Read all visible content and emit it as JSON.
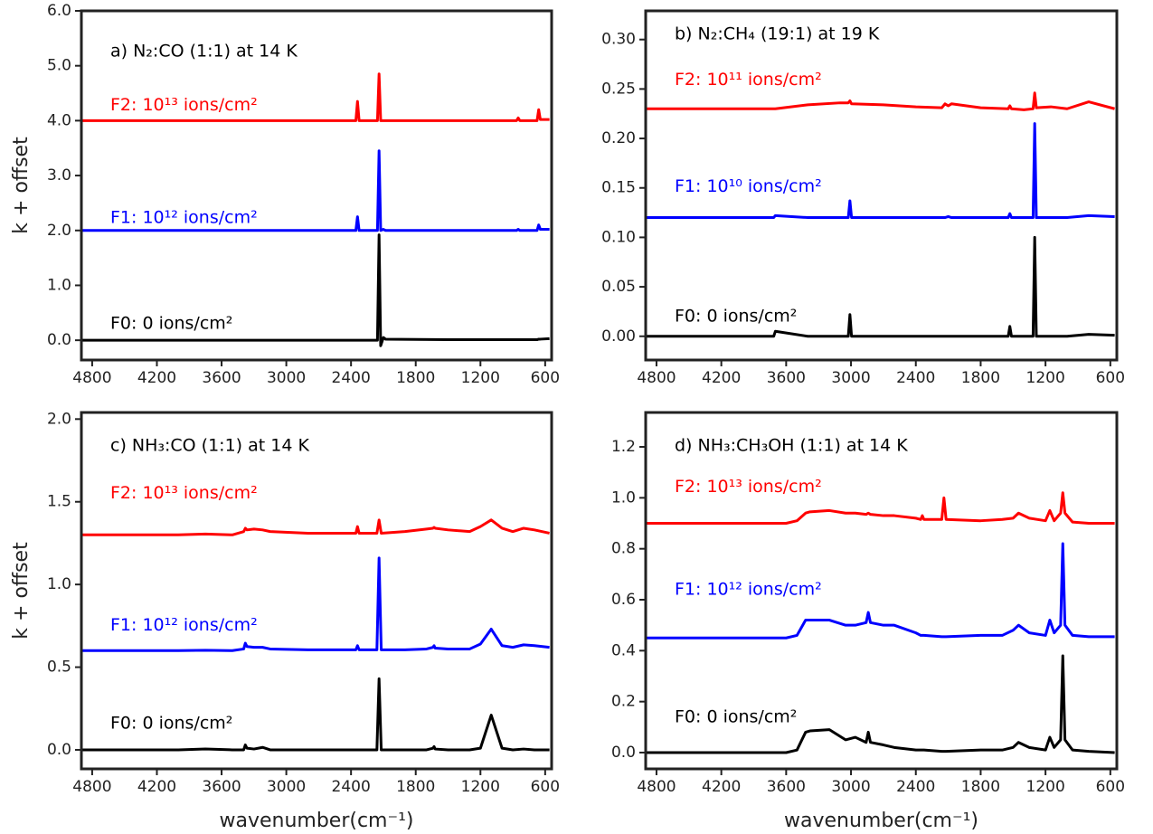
{
  "chart_data": [
    {
      "type": "line",
      "title": "a) N₂:CO (1:1) at 14 K",
      "y_label": "k + offset",
      "x": [
        4900,
        4000,
        3000,
        2400,
        2355,
        2340,
        2325,
        2200,
        2155,
        2140,
        2125,
        2100,
        2080,
        1500,
        900,
        865,
        850,
        835,
        700,
        675,
        660,
        645,
        560
      ],
      "series": [
        {
          "name": "F2: 10¹³ ions/cm²",
          "color": "#ff0000",
          "values": [
            4.0,
            4.0,
            4.0,
            4.0,
            4.0,
            4.35,
            4.0,
            4.0,
            4.0,
            4.85,
            4.0,
            4.0,
            4.0,
            4.0,
            4.0,
            4.0,
            4.05,
            4.0,
            4.0,
            4.0,
            4.2,
            4.02,
            4.02
          ]
        },
        {
          "name": "F1: 10¹² ions/cm²",
          "color": "#0000ff",
          "values": [
            2.0,
            2.0,
            2.0,
            2.0,
            2.0,
            2.25,
            2.0,
            2.0,
            2.0,
            3.45,
            2.0,
            2.02,
            2.0,
            2.0,
            2.0,
            2.0,
            2.02,
            2.0,
            2.0,
            2.0,
            2.1,
            2.02,
            2.02
          ]
        },
        {
          "name": "F0: 0 ions/cm²",
          "color": "#000000",
          "values": [
            0,
            0,
            0,
            0,
            0,
            0,
            0,
            0,
            0,
            1.92,
            -0.1,
            0.05,
            0.02,
            0.01,
            0.01,
            0.01,
            0.01,
            0.01,
            0.01,
            0.01,
            0.02,
            0.02,
            0.03
          ]
        }
      ],
      "xlim": [
        4900,
        540
      ],
      "xticks": [
        4800,
        4200,
        3600,
        3000,
        2400,
        1800,
        1200,
        600
      ],
      "ylim": [
        -0.36,
        6.0
      ],
      "yticks": [
        {
          "value": 0,
          "label": "0.0"
        },
        {
          "value": 1,
          "label": "1.0"
        },
        {
          "value": 2,
          "label": "2.0"
        },
        {
          "value": 3,
          "label": "3.0"
        },
        {
          "value": 4,
          "label": "4.0"
        },
        {
          "value": 5,
          "label": "5.0"
        },
        {
          "value": 6,
          "label": "6.0"
        }
      ],
      "grid": false
    },
    {
      "type": "line",
      "title": "b) N₂:CH₄ (19:1) at 19 K",
      "x": [
        4900,
        4000,
        3730,
        3715,
        3700,
        3400,
        3100,
        3025,
        3010,
        2995,
        2700,
        2400,
        2160,
        2130,
        2100,
        2070,
        1800,
        1545,
        1530,
        1515,
        1400,
        1315,
        1300,
        1285,
        1150,
        1000,
        800,
        560
      ],
      "series": [
        {
          "name": "F2: 10¹¹ ions/cm²",
          "color": "#ff0000",
          "values": [
            0.23,
            0.23,
            0.23,
            0.23,
            0.23,
            0.234,
            0.236,
            0.236,
            0.238,
            0.235,
            0.234,
            0.232,
            0.231,
            0.235,
            0.233,
            0.235,
            0.231,
            0.23,
            0.233,
            0.23,
            0.229,
            0.23,
            0.246,
            0.231,
            0.232,
            0.23,
            0.237,
            0.23
          ]
        },
        {
          "name": "F1: 10¹⁰ ions/cm²",
          "color": "#0000ff",
          "values": [
            0.12,
            0.12,
            0.12,
            0.12,
            0.122,
            0.12,
            0.12,
            0.12,
            0.137,
            0.12,
            0.12,
            0.12,
            0.12,
            0.12,
            0.121,
            0.12,
            0.12,
            0.12,
            0.124,
            0.12,
            0.12,
            0.12,
            0.215,
            0.12,
            0.12,
            0.12,
            0.122,
            0.121
          ]
        },
        {
          "name": "F0: 0 ions/cm²",
          "color": "#000000",
          "values": [
            0,
            0,
            0,
            0,
            0.005,
            0,
            0,
            0,
            0.022,
            0,
            0,
            0,
            0,
            0,
            0,
            0,
            0,
            0,
            0.01,
            0,
            0,
            0,
            0.1,
            0,
            0,
            0,
            0.002,
            0.001
          ]
        }
      ],
      "xlim": [
        4900,
        540
      ],
      "xticks": [
        4800,
        4200,
        3600,
        3000,
        2400,
        1800,
        1200,
        600
      ],
      "ylim": [
        -0.024,
        0.329
      ],
      "yticks": [
        {
          "value": 0,
          "label": "0.00"
        },
        0.05,
        {
          "value": 0.1,
          "label": "0.10"
        },
        0.15,
        {
          "value": 0.2,
          "label": "0.20"
        },
        0.25,
        {
          "value": 0.3,
          "label": "0.30"
        }
      ],
      "grid": false
    },
    {
      "type": "line",
      "title": "c) NH₃:CO (1:1) at 14 K",
      "x_label": "wavenumber(cm⁻¹)",
      "y_label": "k + offset",
      "x": [
        4900,
        4000,
        3750,
        3500,
        3395,
        3380,
        3365,
        3300,
        3220,
        3150,
        2800,
        2400,
        2355,
        2340,
        2325,
        2160,
        2140,
        2120,
        1900,
        1700,
        1640,
        1630,
        1620,
        1500,
        1300,
        1200,
        1100,
        1000,
        900,
        800,
        700,
        560
      ],
      "series": [
        {
          "name": "F2: 10¹³ ions/cm²",
          "color": "#ff0000",
          "values": [
            1.3,
            1.3,
            1.305,
            1.3,
            1.32,
            1.34,
            1.33,
            1.335,
            1.33,
            1.32,
            1.31,
            1.31,
            1.31,
            1.35,
            1.31,
            1.31,
            1.39,
            1.31,
            1.32,
            1.335,
            1.34,
            1.345,
            1.34,
            1.33,
            1.32,
            1.35,
            1.39,
            1.34,
            1.32,
            1.34,
            1.33,
            1.31
          ]
        },
        {
          "name": "F1: 10¹² ions/cm²",
          "color": "#0000ff",
          "values": [
            0.6,
            0.6,
            0.602,
            0.6,
            0.61,
            0.645,
            0.625,
            0.62,
            0.62,
            0.61,
            0.605,
            0.605,
            0.605,
            0.63,
            0.605,
            0.605,
            1.16,
            0.605,
            0.605,
            0.61,
            0.62,
            0.63,
            0.615,
            0.61,
            0.61,
            0.64,
            0.73,
            0.63,
            0.62,
            0.635,
            0.63,
            0.62
          ]
        },
        {
          "name": "F0: 0 ions/cm²",
          "color": "#000000",
          "values": [
            0,
            0,
            0.005,
            0,
            0,
            0.03,
            0.01,
            0.005,
            0.015,
            0,
            0,
            0,
            0,
            0,
            0,
            0,
            0.43,
            0,
            0,
            0,
            0.01,
            0.02,
            0.005,
            0,
            0,
            0.01,
            0.21,
            0.01,
            0,
            0.005,
            0,
            0
          ]
        }
      ],
      "xlim": [
        4900,
        540
      ],
      "xticks": [
        4800,
        4200,
        3600,
        3000,
        2400,
        1800,
        1200,
        600
      ],
      "ylim": [
        -0.115,
        2.04
      ],
      "yticks": [
        {
          "value": 0,
          "label": "0.0"
        },
        0.5,
        {
          "value": 1,
          "label": "1.0"
        },
        1.5,
        {
          "value": 2,
          "label": "2.0"
        }
      ],
      "grid": false
    },
    {
      "type": "line",
      "title": "d) NH₃:CH₃OH (1:1) at 14 K",
      "x_label": "wavenumber(cm⁻¹)",
      "x": [
        4900,
        4000,
        3600,
        3500,
        3420,
        3380,
        3200,
        3050,
        2960,
        2860,
        2840,
        2820,
        2700,
        2600,
        2400,
        2355,
        2340,
        2325,
        2160,
        2140,
        2120,
        1800,
        1600,
        1500,
        1450,
        1350,
        1200,
        1160,
        1120,
        1060,
        1040,
        1020,
        950,
        800,
        560
      ],
      "series": [
        {
          "name": "F2: 10¹³ ions/cm²",
          "color": "#ff0000",
          "values": [
            0.9,
            0.9,
            0.9,
            0.91,
            0.94,
            0.945,
            0.95,
            0.94,
            0.94,
            0.935,
            0.94,
            0.935,
            0.93,
            0.93,
            0.92,
            0.915,
            0.93,
            0.915,
            0.915,
            1.0,
            0.915,
            0.91,
            0.915,
            0.92,
            0.94,
            0.92,
            0.91,
            0.95,
            0.91,
            0.94,
            1.02,
            0.94,
            0.905,
            0.9,
            0.9
          ]
        },
        {
          "name": "F1: 10¹² ions/cm²",
          "color": "#0000ff",
          "values": [
            0.45,
            0.45,
            0.45,
            0.46,
            0.52,
            0.52,
            0.52,
            0.5,
            0.5,
            0.51,
            0.55,
            0.51,
            0.5,
            0.5,
            0.47,
            0.46,
            0.46,
            0.46,
            0.455,
            0.455,
            0.455,
            0.46,
            0.46,
            0.48,
            0.5,
            0.47,
            0.46,
            0.52,
            0.47,
            0.5,
            0.82,
            0.5,
            0.46,
            0.455,
            0.455
          ]
        },
        {
          "name": "F0: 0 ions/cm²",
          "color": "#000000",
          "values": [
            0,
            0,
            0,
            0.01,
            0.08,
            0.085,
            0.09,
            0.05,
            0.06,
            0.04,
            0.08,
            0.04,
            0.03,
            0.02,
            0.01,
            0.01,
            0.01,
            0.01,
            0.005,
            0.005,
            0.005,
            0.01,
            0.01,
            0.02,
            0.04,
            0.02,
            0.01,
            0.06,
            0.02,
            0.05,
            0.38,
            0.05,
            0.01,
            0.005,
            0
          ]
        }
      ],
      "xlim": [
        4900,
        540
      ],
      "xticks": [
        4800,
        4200,
        3600,
        3000,
        2400,
        1800,
        1200,
        600
      ],
      "ylim": [
        -0.064,
        1.335
      ],
      "yticks": [
        {
          "value": 0,
          "label": "0.0"
        },
        0.2,
        0.4,
        0.6,
        0.8,
        {
          "value": 1,
          "label": "1.0"
        },
        1.2
      ],
      "grid": false
    }
  ]
}
